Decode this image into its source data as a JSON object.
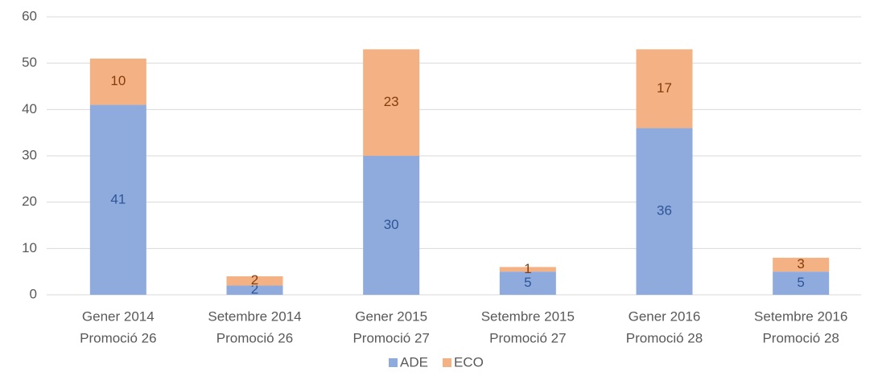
{
  "chart_data": {
    "type": "stacked_bar",
    "categories": [
      [
        "Gener  2014",
        "Promoció 26"
      ],
      [
        "Setembre 2014",
        "Promoció 26"
      ],
      [
        "Gener 2015",
        "Promoció 27"
      ],
      [
        "Setembre 2015",
        "Promoció 27"
      ],
      [
        "Gener 2016",
        "Promoció 28"
      ],
      [
        "Setembre 2016",
        "Promoció 28"
      ]
    ],
    "series": [
      {
        "name": "ADE",
        "color": "#8faadc",
        "label_color": "#2f5597",
        "values": [
          41,
          2,
          30,
          5,
          36,
          5
        ]
      },
      {
        "name": "ECO",
        "color": "#f4b183",
        "label_color": "#843c0c",
        "values": [
          10,
          2,
          23,
          1,
          17,
          3
        ]
      }
    ],
    "ylim": [
      0,
      60
    ],
    "yticks": [
      0,
      10,
      20,
      30,
      40,
      50,
      60
    ],
    "grid": true,
    "legend": "bottom"
  }
}
